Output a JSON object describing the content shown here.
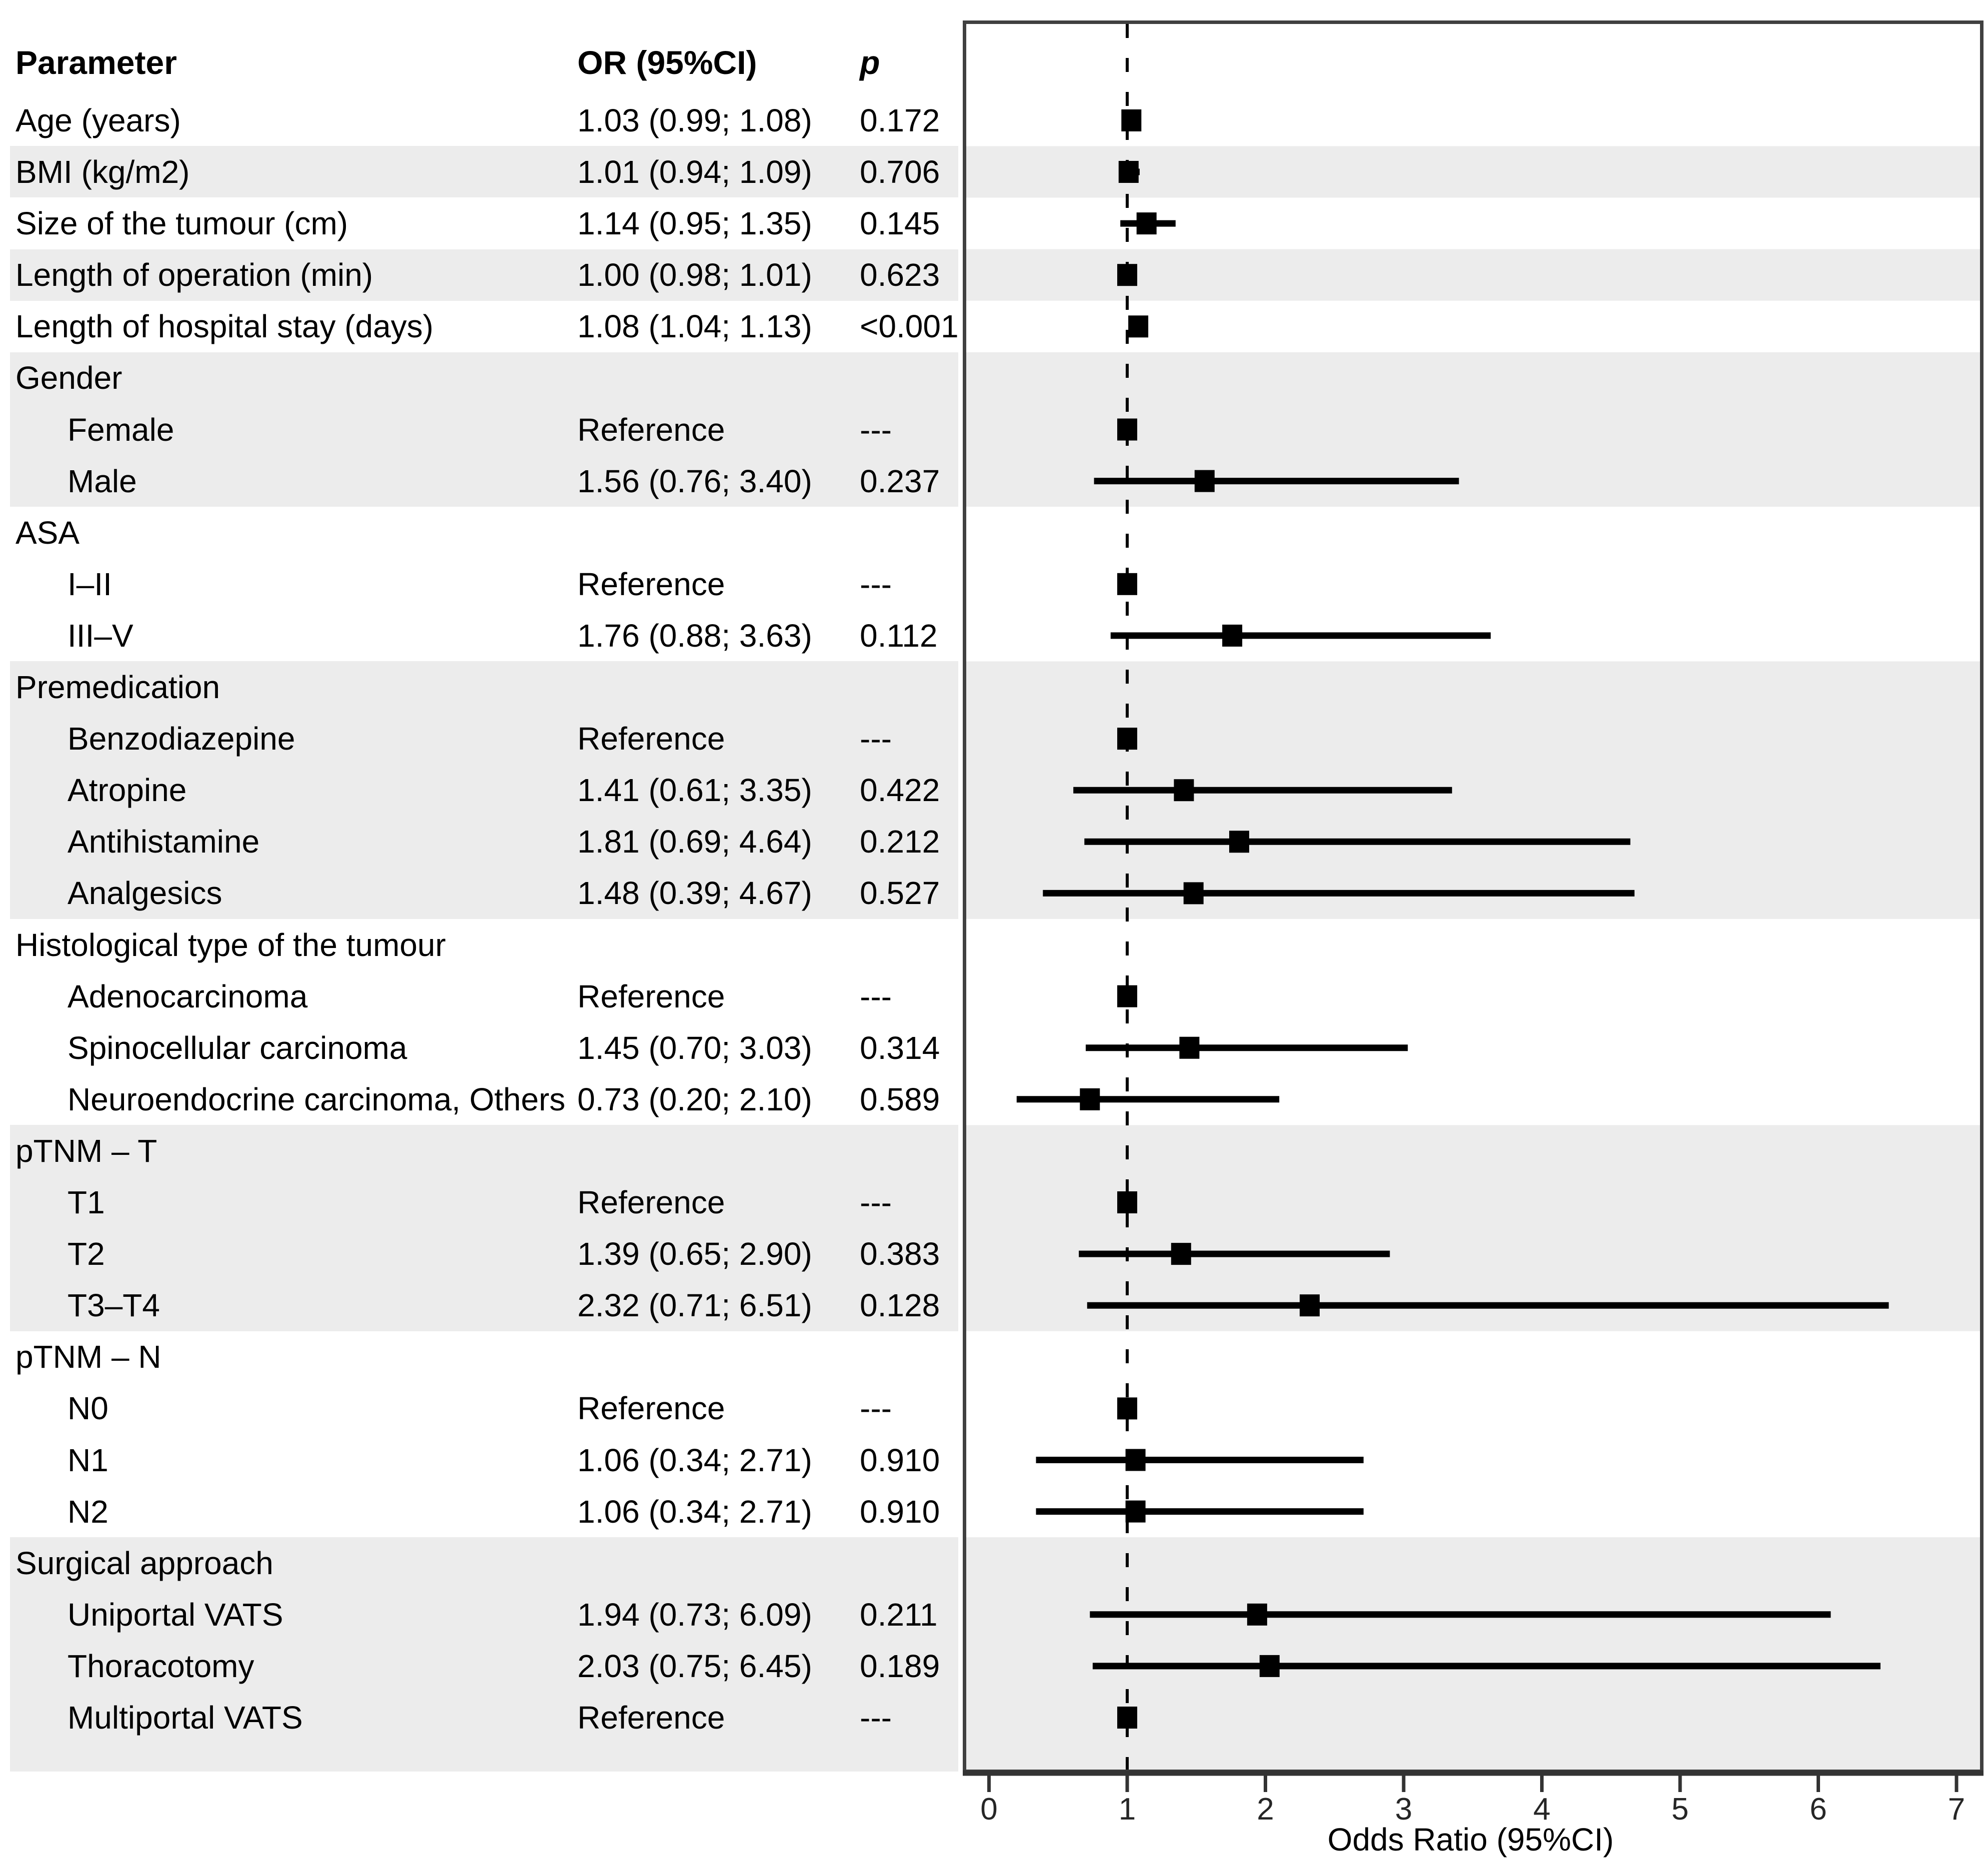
{
  "colors": {
    "stripe": "#ececec",
    "panel_border": "#404040",
    "axis": "#333333",
    "marker": "#000000",
    "reference_line": "#000000",
    "text": "#000000"
  },
  "chart_data": {
    "type": "forest",
    "xlabel": "Odds Ratio (95%CI)",
    "xlim": [
      0,
      7
    ],
    "xticks": [
      0,
      1,
      2,
      3,
      4,
      5,
      6,
      7
    ],
    "reference_line_at": 1,
    "grid": false,
    "columns": {
      "parameter": "Parameter",
      "or_ci": "OR (95%CI)",
      "p": "p"
    },
    "reference_label": "Reference",
    "no_p_label": "---",
    "rows": [
      {
        "label": "Age (years)",
        "indent": false,
        "group_header": false,
        "or_text": "1.03 (0.99; 1.08)",
        "p_text": "0.172",
        "or": 1.03,
        "lo": 0.99,
        "hi": 1.08,
        "reference": false,
        "shaded": false
      },
      {
        "label": "BMI (kg/m2)",
        "indent": false,
        "group_header": false,
        "or_text": "1.01 (0.94; 1.09)",
        "p_text": "0.706",
        "or": 1.01,
        "lo": 0.94,
        "hi": 1.09,
        "reference": false,
        "shaded": true
      },
      {
        "label": "Size of the tumour (cm)",
        "indent": false,
        "group_header": false,
        "or_text": "1.14 (0.95; 1.35)",
        "p_text": "0.145",
        "or": 1.14,
        "lo": 0.95,
        "hi": 1.35,
        "reference": false,
        "shaded": false
      },
      {
        "label": "Length of operation (min)",
        "indent": false,
        "group_header": false,
        "or_text": "1.00 (0.98; 1.01)",
        "p_text": "0.623",
        "or": 1.0,
        "lo": 0.98,
        "hi": 1.01,
        "reference": false,
        "shaded": true
      },
      {
        "label": "Length of hospital stay (days)",
        "indent": false,
        "group_header": false,
        "or_text": "1.08 (1.04; 1.13)",
        "p_text": "<0.001",
        "or": 1.08,
        "lo": 1.04,
        "hi": 1.13,
        "reference": false,
        "shaded": false
      },
      {
        "label": "Gender",
        "indent": false,
        "group_header": true,
        "or_text": "",
        "p_text": "",
        "or": null,
        "lo": null,
        "hi": null,
        "reference": false,
        "shaded": true
      },
      {
        "label": "Female",
        "indent": true,
        "group_header": false,
        "or_text": "Reference",
        "p_text": "---",
        "or": 1.0,
        "lo": null,
        "hi": null,
        "reference": true,
        "shaded": true
      },
      {
        "label": "Male",
        "indent": true,
        "group_header": false,
        "or_text": "1.56 (0.76; 3.40)",
        "p_text": "0.237",
        "or": 1.56,
        "lo": 0.76,
        "hi": 3.4,
        "reference": false,
        "shaded": true
      },
      {
        "label": "ASA",
        "indent": false,
        "group_header": true,
        "or_text": "",
        "p_text": "",
        "or": null,
        "lo": null,
        "hi": null,
        "reference": false,
        "shaded": false
      },
      {
        "label": "I–II",
        "indent": true,
        "group_header": false,
        "or_text": "Reference",
        "p_text": "---",
        "or": 1.0,
        "lo": null,
        "hi": null,
        "reference": true,
        "shaded": false
      },
      {
        "label": "III–V",
        "indent": true,
        "group_header": false,
        "or_text": "1.76 (0.88; 3.63)",
        "p_text": "0.112",
        "or": 1.76,
        "lo": 0.88,
        "hi": 3.63,
        "reference": false,
        "shaded": false
      },
      {
        "label": "Premedication",
        "indent": false,
        "group_header": true,
        "or_text": "",
        "p_text": "",
        "or": null,
        "lo": null,
        "hi": null,
        "reference": false,
        "shaded": true
      },
      {
        "label": "Benzodiazepine",
        "indent": true,
        "group_header": false,
        "or_text": "Reference",
        "p_text": "---",
        "or": 1.0,
        "lo": null,
        "hi": null,
        "reference": true,
        "shaded": true
      },
      {
        "label": "Atropine",
        "indent": true,
        "group_header": false,
        "or_text": "1.41 (0.61; 3.35)",
        "p_text": "0.422",
        "or": 1.41,
        "lo": 0.61,
        "hi": 3.35,
        "reference": false,
        "shaded": true
      },
      {
        "label": "Antihistamine",
        "indent": true,
        "group_header": false,
        "or_text": "1.81 (0.69; 4.64)",
        "p_text": "0.212",
        "or": 1.81,
        "lo": 0.69,
        "hi": 4.64,
        "reference": false,
        "shaded": true
      },
      {
        "label": "Analgesics",
        "indent": true,
        "group_header": false,
        "or_text": "1.48 (0.39; 4.67)",
        "p_text": "0.527",
        "or": 1.48,
        "lo": 0.39,
        "hi": 4.67,
        "reference": false,
        "shaded": true
      },
      {
        "label": "Histological type of the tumour",
        "indent": false,
        "group_header": true,
        "or_text": "",
        "p_text": "",
        "or": null,
        "lo": null,
        "hi": null,
        "reference": false,
        "shaded": false
      },
      {
        "label": "Adenocarcinoma",
        "indent": true,
        "group_header": false,
        "or_text": "Reference",
        "p_text": "---",
        "or": 1.0,
        "lo": null,
        "hi": null,
        "reference": true,
        "shaded": false
      },
      {
        "label": "Spinocellular carcinoma",
        "indent": true,
        "group_header": false,
        "or_text": "1.45 (0.70; 3.03)",
        "p_text": "0.314",
        "or": 1.45,
        "lo": 0.7,
        "hi": 3.03,
        "reference": false,
        "shaded": false
      },
      {
        "label": "Neuroendocrine carcinoma, Others",
        "indent": true,
        "group_header": false,
        "or_text": "0.73 (0.20; 2.10)",
        "p_text": "0.589",
        "or": 0.73,
        "lo": 0.2,
        "hi": 2.1,
        "reference": false,
        "shaded": false
      },
      {
        "label": "pTNM – T",
        "indent": false,
        "group_header": true,
        "or_text": "",
        "p_text": "",
        "or": null,
        "lo": null,
        "hi": null,
        "reference": false,
        "shaded": true
      },
      {
        "label": "T1",
        "indent": true,
        "group_header": false,
        "or_text": "Reference",
        "p_text": "---",
        "or": 1.0,
        "lo": null,
        "hi": null,
        "reference": true,
        "shaded": true
      },
      {
        "label": "T2",
        "indent": true,
        "group_header": false,
        "or_text": "1.39 (0.65; 2.90)",
        "p_text": "0.383",
        "or": 1.39,
        "lo": 0.65,
        "hi": 2.9,
        "reference": false,
        "shaded": true
      },
      {
        "label": "T3–T4",
        "indent": true,
        "group_header": false,
        "or_text": "2.32 (0.71; 6.51)",
        "p_text": "0.128",
        "or": 2.32,
        "lo": 0.71,
        "hi": 6.51,
        "reference": false,
        "shaded": true
      },
      {
        "label": "pTNM – N",
        "indent": false,
        "group_header": true,
        "or_text": "",
        "p_text": "",
        "or": null,
        "lo": null,
        "hi": null,
        "reference": false,
        "shaded": false
      },
      {
        "label": "N0",
        "indent": true,
        "group_header": false,
        "or_text": "Reference",
        "p_text": "---",
        "or": 1.0,
        "lo": null,
        "hi": null,
        "reference": true,
        "shaded": false
      },
      {
        "label": "N1",
        "indent": true,
        "group_header": false,
        "or_text": "1.06 (0.34; 2.71)",
        "p_text": "0.910",
        "or": 1.06,
        "lo": 0.34,
        "hi": 2.71,
        "reference": false,
        "shaded": false
      },
      {
        "label": "N2",
        "indent": true,
        "group_header": false,
        "or_text": "1.06 (0.34; 2.71)",
        "p_text": "0.910",
        "or": 1.06,
        "lo": 0.34,
        "hi": 2.71,
        "reference": false,
        "shaded": false
      },
      {
        "label": "Surgical approach",
        "indent": false,
        "group_header": true,
        "or_text": "",
        "p_text": "",
        "or": null,
        "lo": null,
        "hi": null,
        "reference": false,
        "shaded": true
      },
      {
        "label": "Uniportal VATS",
        "indent": true,
        "group_header": false,
        "or_text": "1.94 (0.73; 6.09)",
        "p_text": "0.211",
        "or": 1.94,
        "lo": 0.73,
        "hi": 6.09,
        "reference": false,
        "shaded": true
      },
      {
        "label": "Thoracotomy",
        "indent": true,
        "group_header": false,
        "or_text": "2.03 (0.75; 6.45)",
        "p_text": "0.189",
        "or": 2.03,
        "lo": 0.75,
        "hi": 6.45,
        "reference": false,
        "shaded": true
      },
      {
        "label": "Multiportal VATS",
        "indent": true,
        "group_header": false,
        "or_text": "Reference",
        "p_text": "---",
        "or": 1.0,
        "lo": null,
        "hi": null,
        "reference": true,
        "shaded": true
      }
    ]
  }
}
